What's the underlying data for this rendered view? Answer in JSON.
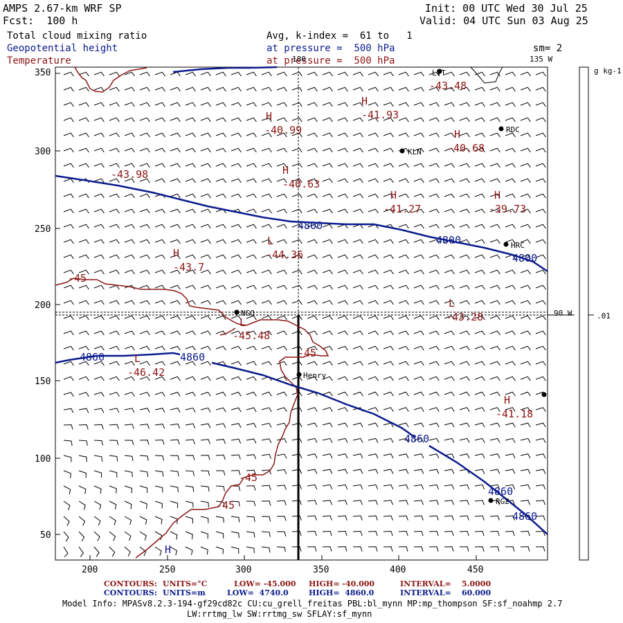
{
  "header": {
    "title": "AMPS 2.67-km WRF SP",
    "forecast": "Fcst:  100 h",
    "init": "Init: 00 UTC Wed 30 Jul 25",
    "valid": "Valid: 04 UTC Sun 03 Aug 25"
  },
  "fields": [
    {
      "name": "Total cloud mixing ratio",
      "desc": "Avg, k-index =  61 to   1",
      "color": "#000000"
    },
    {
      "name": "Geopotential height",
      "desc": "at pressure =  500 hPa",
      "color": "#0a1a8c"
    },
    {
      "name": "Temperature",
      "desc": "at pressure =  500 hPa",
      "color": "#8c1414"
    }
  ],
  "smoothing": "sm= 2",
  "colorbar": {
    "units": "g kg-1",
    "tick": ".01"
  },
  "meridians": {
    "top_180": "180",
    "top_135w": "135 W",
    "right_90w": "90 W"
  },
  "axes": {
    "x_ticks": [
      "200",
      "250",
      "300",
      "350",
      "400",
      "450"
    ],
    "y_ticks": [
      "50",
      "100",
      "150",
      "200",
      "250",
      "300",
      "350"
    ]
  },
  "stations": [
    {
      "name": "LVT"
    },
    {
      "name": "KLN"
    },
    {
      "name": "RDC"
    },
    {
      "name": "HRC"
    },
    {
      "name": "NGO"
    },
    {
      "name": "Henry"
    },
    {
      "name": "RG2"
    }
  ],
  "height_labels": [
    "4800",
    "4800",
    "4800",
    "4860",
    "4860",
    "4860",
    "4860",
    "4860"
  ],
  "temp_labels": [
    "-45",
    "-45",
    "-45",
    "-45"
  ],
  "temp_extrema": [
    {
      "type": "H",
      "value": "-43.48"
    },
    {
      "type": "H",
      "value": "-41.93"
    },
    {
      "type": "H",
      "value": "-40.99"
    },
    {
      "type": "H",
      "value": "-40.68"
    },
    {
      "type": "",
      "value": "-43.98"
    },
    {
      "type": "H",
      "value": "-40.63"
    },
    {
      "type": "H",
      "value": "-41.27"
    },
    {
      "type": "H",
      "value": "-39.73"
    },
    {
      "type": "L",
      "value": "-44.36"
    },
    {
      "type": "H",
      "value": "-43.7"
    },
    {
      "type": "L",
      "value": "-43.28"
    },
    {
      "type": "L",
      "value": "-45.48"
    },
    {
      "type": "L",
      "value": "-46.42"
    },
    {
      "type": "H",
      "value": "-41.18"
    },
    {
      "type": "H",
      "value": ""
    }
  ],
  "contours_temp": {
    "label": "CONTOURS:",
    "units": "UNITS=°C",
    "low": "LOW= -45.000",
    "high": "HIGH= -40.000",
    "interval": "INTERVAL=    5.0000"
  },
  "contours_height": {
    "label": "CONTOURS:",
    "units": "UNITS=m",
    "low": "LOW=  4740.0",
    "high": "HIGH=  4860.0",
    "interval": "INTERVAL=    60.000"
  },
  "model_info_1": "Model Info: MPASv8.2.3-194-gf29cd82c CU:cu_grell_freitas PBL:bl_mynn MP:mp_thompson SF:sf_noahmp 2.7",
  "model_info_2": "LW:rrtmg_lw SW:rrtmg_sw SFLAY:sf_mynn"
}
